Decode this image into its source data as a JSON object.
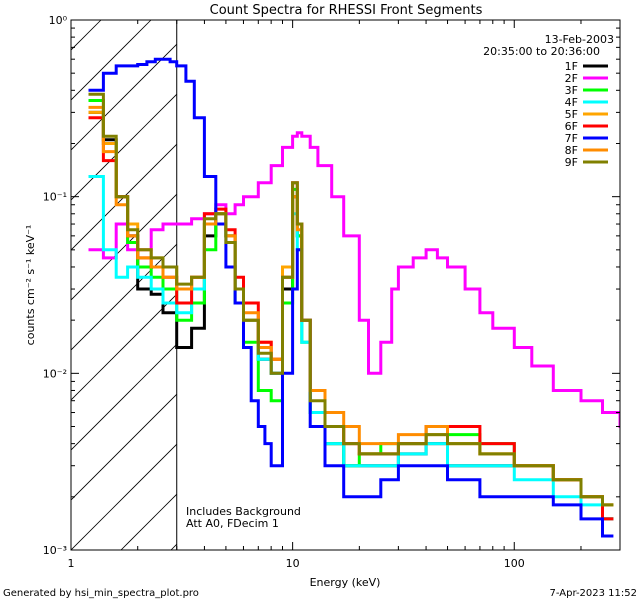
{
  "chart_data": {
    "type": "line",
    "title": "Count Spectra for RHESSI Front Segments",
    "xlabel": "Energy (keV)",
    "ylabel": "counts cm⁻² s⁻¹ keV⁻¹",
    "x_scale": "log",
    "y_scale": "log",
    "xlim": [
      1,
      300
    ],
    "ylim": [
      0.001,
      1
    ],
    "x_ticks": [
      {
        "value": 1,
        "label": "1"
      },
      {
        "value": 10,
        "label": "10"
      },
      {
        "value": 100,
        "label": "100"
      }
    ],
    "y_ticks": [
      {
        "value": 0.001,
        "label": "10⁻³"
      },
      {
        "value": 0.01,
        "label": "10⁻²"
      },
      {
        "value": 0.1,
        "label": "10⁻¹"
      },
      {
        "value": 1,
        "label": "10⁰"
      }
    ],
    "date": "13-Feb-2003",
    "time_range": "20:35:00 to 20:36:00",
    "shaded_region_upper_kev": 3,
    "annotations": [
      "Includes Background",
      "Att A0, FDecim 1"
    ],
    "footer_left": "Generated by hsi_min_spectra_plot.pro",
    "footer_right": "7-Apr-2023 11:52",
    "series": [
      {
        "name": "1F",
        "color": "#000000",
        "x": [
          1.2,
          1.4,
          1.6,
          1.8,
          2.0,
          2.3,
          2.6,
          3.0,
          3.5,
          4.0,
          4.5,
          5.0,
          5.5,
          6.0,
          7.0,
          8.0,
          9.0,
          10.0,
          10.5,
          11.0,
          12.0,
          14.0,
          17.0,
          20.0,
          25.0,
          30.0,
          40.0,
          50.0,
          70.0,
          100.0,
          150.0,
          200.0,
          250.0
        ],
        "y": [
          0.3,
          0.21,
          0.1,
          0.06,
          0.03,
          0.028,
          0.022,
          0.014,
          0.018,
          0.06,
          0.08,
          0.06,
          0.03,
          0.02,
          0.012,
          0.01,
          0.03,
          0.1,
          0.06,
          0.02,
          0.006,
          0.004,
          0.003,
          0.003,
          0.003,
          0.0035,
          0.004,
          0.003,
          0.003,
          0.003,
          0.0025,
          0.002,
          0.0015
        ]
      },
      {
        "name": "2F",
        "color": "#ff00ff",
        "x": [
          1.2,
          1.4,
          1.6,
          1.8,
          2.0,
          2.3,
          2.6,
          3.0,
          3.5,
          4.0,
          4.5,
          5.0,
          5.5,
          6.0,
          7.0,
          8.0,
          9.0,
          10.0,
          10.5,
          11.0,
          12.0,
          13.0,
          15.0,
          17.0,
          20.0,
          22.0,
          25.0,
          28.0,
          30.0,
          35.0,
          40.0,
          45.0,
          50.0,
          60.0,
          70.0,
          80.0,
          100.0,
          120.0,
          150.0,
          200.0,
          250.0,
          300.0
        ],
        "y": [
          0.05,
          0.045,
          0.07,
          0.05,
          0.05,
          0.065,
          0.07,
          0.07,
          0.075,
          0.08,
          0.09,
          0.08,
          0.09,
          0.1,
          0.12,
          0.15,
          0.19,
          0.22,
          0.23,
          0.22,
          0.19,
          0.15,
          0.1,
          0.06,
          0.02,
          0.01,
          0.015,
          0.03,
          0.04,
          0.045,
          0.05,
          0.045,
          0.04,
          0.03,
          0.022,
          0.018,
          0.014,
          0.011,
          0.008,
          0.007,
          0.006,
          0.005
        ]
      },
      {
        "name": "3F",
        "color": "#00ff00",
        "x": [
          1.2,
          1.4,
          1.6,
          1.8,
          2.0,
          2.3,
          2.6,
          3.0,
          3.5,
          4.0,
          4.5,
          5.0,
          5.5,
          6.0,
          7.0,
          8.0,
          9.0,
          10.0,
          10.5,
          11.0,
          12.0,
          14.0,
          17.0,
          20.0,
          25.0,
          30.0,
          40.0,
          50.0,
          70.0,
          100.0,
          150.0,
          200.0,
          250.0
        ],
        "y": [
          0.35,
          0.2,
          0.1,
          0.055,
          0.04,
          0.035,
          0.03,
          0.02,
          0.025,
          0.05,
          0.07,
          0.06,
          0.025,
          0.015,
          0.008,
          0.007,
          0.025,
          0.11,
          0.06,
          0.015,
          0.006,
          0.004,
          0.003,
          0.0035,
          0.004,
          0.004,
          0.005,
          0.0045,
          0.004,
          0.003,
          0.0025,
          0.002,
          0.0015
        ]
      },
      {
        "name": "4F",
        "color": "#00ffff",
        "x": [
          1.2,
          1.4,
          1.6,
          1.8,
          2.0,
          2.3,
          2.6,
          3.0,
          3.5,
          4.0,
          4.5,
          5.0,
          5.5,
          6.0,
          7.0,
          8.0,
          9.0,
          10.0,
          10.5,
          11.0,
          12.0,
          14.0,
          17.0,
          20.0,
          25.0,
          30.0,
          40.0,
          50.0,
          70.0,
          100.0,
          150.0,
          200.0,
          250.0
        ],
        "y": [
          0.13,
          0.05,
          0.035,
          0.04,
          0.035,
          0.03,
          0.025,
          0.022,
          0.03,
          0.07,
          0.08,
          0.06,
          0.03,
          0.02,
          0.012,
          0.01,
          0.035,
          0.08,
          0.05,
          0.015,
          0.006,
          0.004,
          0.003,
          0.003,
          0.003,
          0.0035,
          0.004,
          0.003,
          0.003,
          0.0025,
          0.002,
          0.0018,
          0.0015
        ]
      },
      {
        "name": "5F",
        "color": "#ffa500",
        "x": [
          1.2,
          1.4,
          1.6,
          1.8,
          2.0,
          2.3,
          2.6,
          3.0,
          3.5,
          4.0,
          4.5,
          5.0,
          5.5,
          6.0,
          7.0,
          8.0,
          9.0,
          10.0,
          10.5,
          11.0,
          12.0,
          14.0,
          17.0,
          20.0,
          25.0,
          30.0,
          40.0,
          50.0,
          70.0,
          100.0,
          150.0,
          200.0,
          250.0
        ],
        "y": [
          0.3,
          0.2,
          0.1,
          0.07,
          0.05,
          0.045,
          0.04,
          0.03,
          0.035,
          0.07,
          0.08,
          0.06,
          0.03,
          0.02,
          0.015,
          0.012,
          0.04,
          0.1,
          0.07,
          0.02,
          0.008,
          0.005,
          0.004,
          0.0035,
          0.0035,
          0.004,
          0.0045,
          0.004,
          0.0035,
          0.003,
          0.0025,
          0.002,
          0.0018
        ]
      },
      {
        "name": "6F",
        "color": "#ff0000",
        "x": [
          1.2,
          1.4,
          1.6,
          1.8,
          2.0,
          2.3,
          2.6,
          3.0,
          3.5,
          4.0,
          4.5,
          5.0,
          5.5,
          6.0,
          7.0,
          8.0,
          9.0,
          10.0,
          10.5,
          11.0,
          12.0,
          14.0,
          17.0,
          20.0,
          25.0,
          30.0,
          40.0,
          50.0,
          70.0,
          100.0,
          150.0,
          200.0,
          250.0
        ],
        "y": [
          0.28,
          0.16,
          0.1,
          0.06,
          0.045,
          0.04,
          0.035,
          0.025,
          0.035,
          0.08,
          0.085,
          0.065,
          0.035,
          0.025,
          0.015,
          0.012,
          0.035,
          0.12,
          0.07,
          0.02,
          0.008,
          0.005,
          0.004,
          0.0035,
          0.0035,
          0.004,
          0.005,
          0.005,
          0.004,
          0.003,
          0.0025,
          0.002,
          0.0015
        ]
      },
      {
        "name": "7F",
        "color": "#0000ff",
        "x": [
          1.2,
          1.4,
          1.6,
          1.8,
          2.0,
          2.2,
          2.4,
          2.6,
          2.8,
          3.0,
          3.3,
          3.6,
          4.0,
          4.5,
          5.0,
          5.5,
          6.0,
          6.5,
          7.0,
          7.5,
          8.0,
          9.0,
          10.0,
          10.5,
          11.0,
          12.0,
          14.0,
          17.0,
          20.0,
          25.0,
          30.0,
          40.0,
          50.0,
          70.0,
          100.0,
          150.0,
          200.0,
          250.0
        ],
        "y": [
          0.4,
          0.5,
          0.55,
          0.55,
          0.56,
          0.58,
          0.6,
          0.6,
          0.58,
          0.55,
          0.45,
          0.28,
          0.13,
          0.07,
          0.04,
          0.025,
          0.014,
          0.007,
          0.005,
          0.004,
          0.003,
          0.01,
          0.03,
          0.05,
          0.02,
          0.005,
          0.003,
          0.002,
          0.002,
          0.0025,
          0.003,
          0.003,
          0.0025,
          0.002,
          0.002,
          0.0018,
          0.0015,
          0.0012
        ]
      },
      {
        "name": "8F",
        "color": "#ff8c00",
        "x": [
          1.2,
          1.4,
          1.6,
          1.8,
          2.0,
          2.3,
          2.6,
          3.0,
          3.5,
          4.0,
          4.5,
          5.0,
          5.5,
          6.0,
          7.0,
          8.0,
          9.0,
          10.0,
          10.5,
          11.0,
          12.0,
          14.0,
          17.0,
          20.0,
          25.0,
          30.0,
          40.0,
          50.0,
          70.0,
          100.0,
          150.0,
          200.0,
          250.0
        ],
        "y": [
          0.32,
          0.18,
          0.09,
          0.06,
          0.045,
          0.04,
          0.035,
          0.03,
          0.035,
          0.07,
          0.08,
          0.06,
          0.03,
          0.022,
          0.014,
          0.012,
          0.035,
          0.1,
          0.065,
          0.02,
          0.008,
          0.006,
          0.005,
          0.004,
          0.004,
          0.0045,
          0.005,
          0.004,
          0.0035,
          0.003,
          0.0025,
          0.002,
          0.0018
        ]
      },
      {
        "name": "9F",
        "color": "#808000",
        "x": [
          1.2,
          1.4,
          1.6,
          1.8,
          2.0,
          2.3,
          2.6,
          3.0,
          3.5,
          4.0,
          4.5,
          5.0,
          5.5,
          6.0,
          7.0,
          8.0,
          9.0,
          10.0,
          10.5,
          11.0,
          12.0,
          14.0,
          17.0,
          20.0,
          25.0,
          30.0,
          40.0,
          50.0,
          70.0,
          100.0,
          150.0,
          200.0,
          250.0
        ],
        "y": [
          0.38,
          0.22,
          0.1,
          0.065,
          0.05,
          0.045,
          0.04,
          0.032,
          0.035,
          0.075,
          0.08,
          0.055,
          0.03,
          0.02,
          0.013,
          0.01,
          0.035,
          0.12,
          0.07,
          0.02,
          0.007,
          0.005,
          0.004,
          0.0035,
          0.0035,
          0.004,
          0.0045,
          0.004,
          0.0035,
          0.003,
          0.0025,
          0.002,
          0.0018
        ]
      }
    ]
  }
}
